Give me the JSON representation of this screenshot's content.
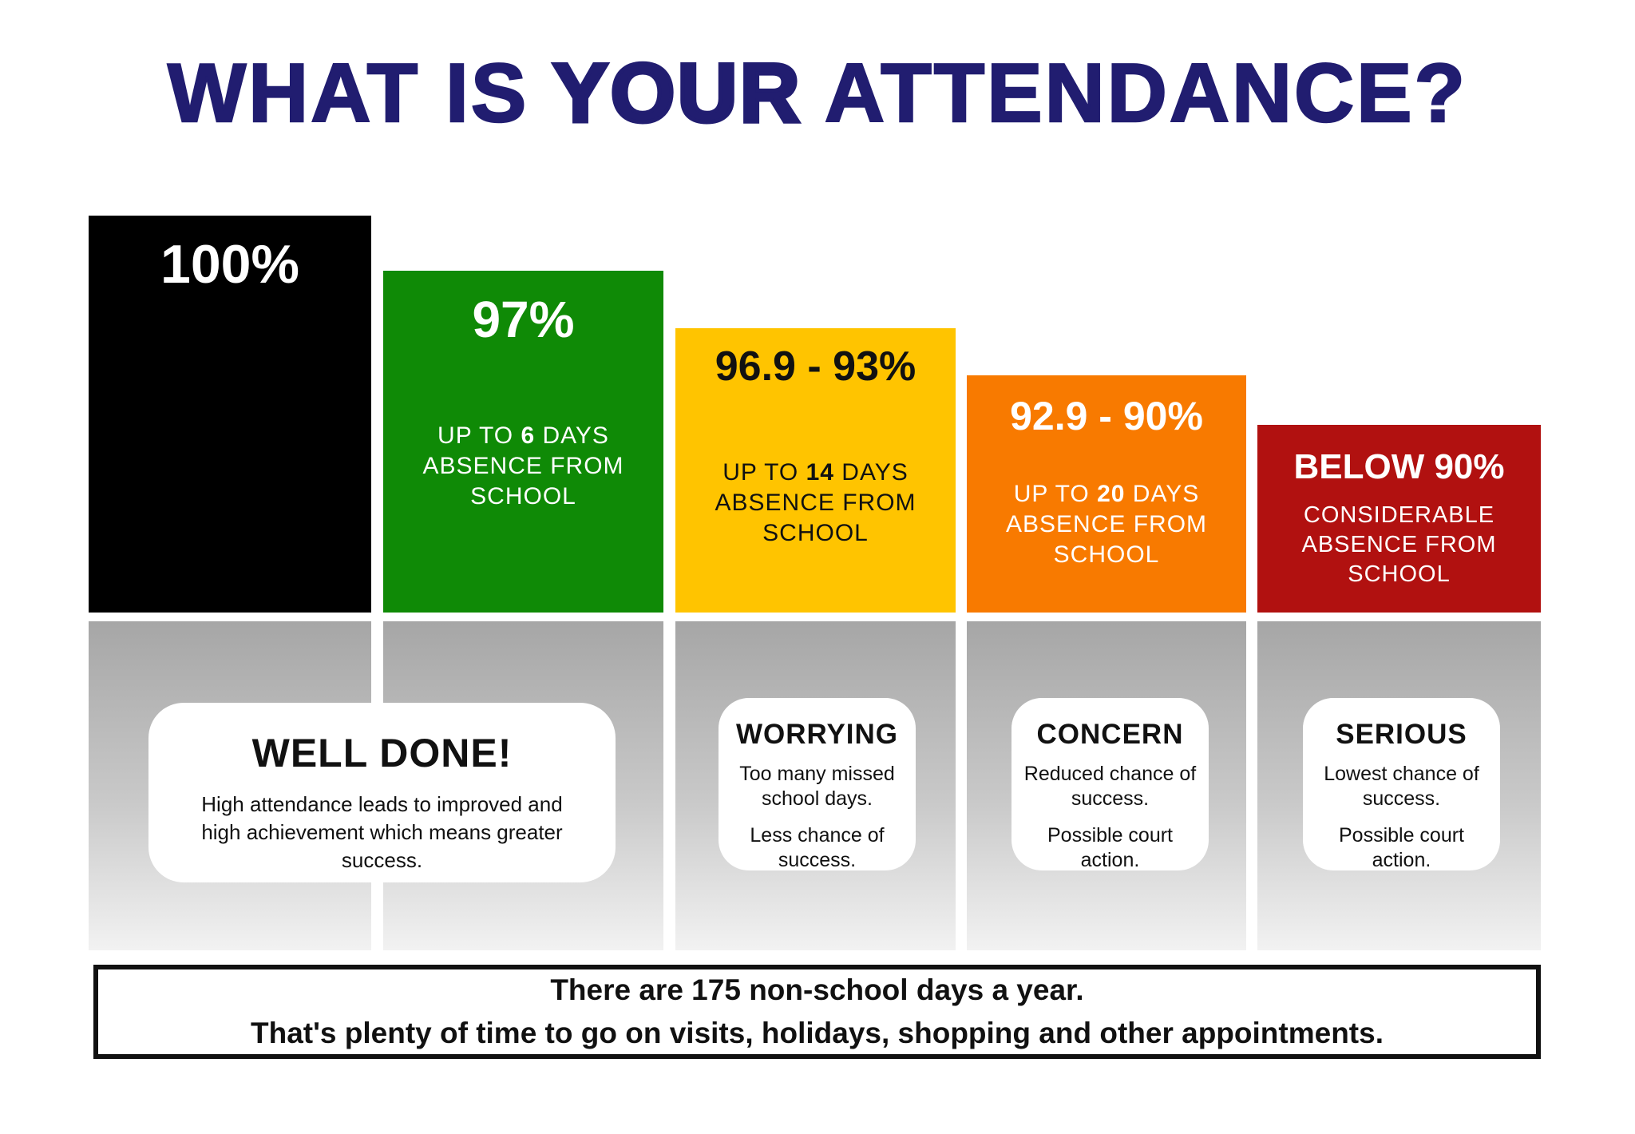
{
  "title": {
    "pre": "WHAT IS",
    "emphasis": "YOUR",
    "post": "ATTENDANCE?"
  },
  "colors": {
    "title_navy": "#211d70",
    "bar_black": "#000000",
    "bar_green": "#0f8a06",
    "bar_yellow": "#ffc400",
    "bar_orange": "#f87a00",
    "bar_red": "#b11110",
    "column_grey_top": "#a6a6a6",
    "column_grey_bottom": "#f2f2f2",
    "card_white": "#ffffff",
    "footer_border": "#111111"
  },
  "bars": [
    {
      "percent": "100%",
      "detail_pre": "",
      "detail_bold": "",
      "detail_post": "",
      "color": "#000000"
    },
    {
      "percent": "97%",
      "detail_pre": "UP TO ",
      "detail_bold": "6",
      "detail_post": " DAYS ABSENCE FROM SCHOOL",
      "color": "#0f8a06"
    },
    {
      "percent": "96.9 - 93%",
      "detail_pre": "UP TO ",
      "detail_bold": "14",
      "detail_post": " DAYS ABSENCE FROM SCHOOL",
      "color": "#ffc400"
    },
    {
      "percent": "92.9 - 90%",
      "detail_pre": "UP TO ",
      "detail_bold": "20",
      "detail_post": " DAYS ABSENCE FROM SCHOOL",
      "color": "#f87a00"
    },
    {
      "percent": "BELOW 90%",
      "detail_pre": "CONSIDERABLE ABSENCE FROM SCHOOL",
      "detail_bold": "",
      "detail_post": "",
      "color": "#b11110"
    }
  ],
  "notes": [
    {
      "title": "WELL DONE!",
      "body": "High attendance leads to improved and high achievement which means greater success."
    },
    {
      "title": "WORRYING",
      "line1": "Too many missed school days.",
      "line2": "Less chance of success."
    },
    {
      "title": "CONCERN",
      "line1": "Reduced chance of success.",
      "line2": "Possible court action."
    },
    {
      "title": "SERIOUS",
      "line1": "Lowest chance of success.",
      "line2": "Possible court action."
    }
  ],
  "footer": {
    "line1": "There are 175 non-school days a year.",
    "line2": "That's plenty of time to go on visits, holidays, shopping and other appointments."
  },
  "chart_data": {
    "type": "bar",
    "title": "WHAT IS YOUR ATTENDANCE?",
    "categories": [
      "100%",
      "97%",
      "96.9 - 93%",
      "92.9 - 90%",
      "BELOW 90%"
    ],
    "series": [
      {
        "name": "relative-bar-height-percent",
        "values": [
          100,
          86,
          72,
          60,
          47
        ]
      }
    ],
    "bar_colors": [
      "#000000",
      "#0f8a06",
      "#ffc400",
      "#f87a00",
      "#b11110"
    ],
    "annotations": [
      "",
      "UP TO 6 DAYS ABSENCE FROM SCHOOL",
      "UP TO 14 DAYS ABSENCE FROM SCHOOL",
      "UP TO 20 DAYS ABSENCE FROM SCHOOL",
      "CONSIDERABLE ABSENCE FROM SCHOOL"
    ],
    "statuses": [
      "WELL DONE!",
      "WELL DONE!",
      "WORRYING",
      "CONCERN",
      "SERIOUS"
    ],
    "xlabel": "",
    "ylabel": "",
    "grid": false,
    "legend_position": "none"
  }
}
